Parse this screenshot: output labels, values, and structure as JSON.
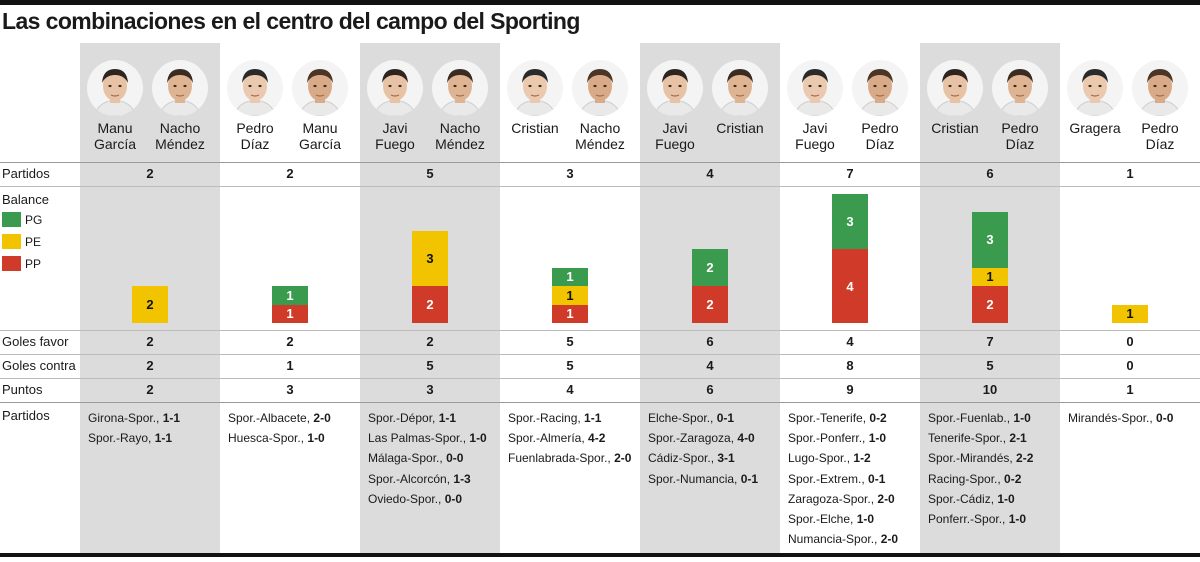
{
  "title": "Las combinaciones en el centro del campo del Sporting",
  "row_labels": {
    "partidos": "Partidos",
    "balance": "Balance",
    "goles_favor": "Goles favor",
    "goles_contra": "Goles contra",
    "puntos": "Puntos",
    "partidos_list": "Partidos"
  },
  "legend": [
    {
      "key": "pg",
      "label": "PG",
      "color": "#3a9a4e"
    },
    {
      "key": "pe",
      "label": "PE",
      "color": "#f2c400"
    },
    {
      "key": "pp",
      "label": "PP",
      "color": "#cf3b28"
    }
  ],
  "chart_data": {
    "type": "bar",
    "stacked": true,
    "categories": [
      "Manu García / Nacho Méndez",
      "Pedro Díaz / Manu García",
      "Javi Fuego / Nacho Méndez",
      "Cristian / Nacho Méndez",
      "Javi Fuego / Cristian",
      "Javi Fuego / Pedro Díaz",
      "Cristian / Pedro Díaz",
      "Gragera / Pedro Díaz"
    ],
    "series": [
      {
        "name": "PG",
        "values": [
          0,
          1,
          0,
          1,
          2,
          3,
          3,
          0
        ],
        "color": "#3a9a4e"
      },
      {
        "name": "PE",
        "values": [
          2,
          0,
          3,
          1,
          0,
          0,
          1,
          1
        ],
        "color": "#f2c400"
      },
      {
        "name": "PP",
        "values": [
          0,
          1,
          2,
          1,
          2,
          4,
          2,
          0
        ],
        "color": "#cf3b28"
      }
    ]
  },
  "columns": [
    {
      "players": [
        {
          "name": "Manu\nGarcía"
        },
        {
          "name": "Nacho\nMéndez"
        }
      ],
      "partidos": "2",
      "goles_favor": "2",
      "goles_contra": "2",
      "puntos": "2",
      "matches": [
        {
          "teams": "Girona-Spor.,",
          "score": "1-1"
        },
        {
          "teams": "Spor.-Rayo,",
          "score": "1-1"
        }
      ]
    },
    {
      "players": [
        {
          "name": "Pedro\nDíaz"
        },
        {
          "name": "Manu\nGarcía"
        }
      ],
      "partidos": "2",
      "goles_favor": "2",
      "goles_contra": "1",
      "puntos": "3",
      "matches": [
        {
          "teams": "Spor.-Albacete,",
          "score": "2-0"
        },
        {
          "teams": "Huesca-Spor.,",
          "score": "1-0"
        }
      ]
    },
    {
      "players": [
        {
          "name": "Javi\nFuego"
        },
        {
          "name": "Nacho\nMéndez"
        }
      ],
      "partidos": "5",
      "goles_favor": "2",
      "goles_contra": "5",
      "puntos": "3",
      "matches": [
        {
          "teams": "Spor.-Dépor,",
          "score": "1-1"
        },
        {
          "teams": "Las Palmas-Spor.,",
          "score": "1-0"
        },
        {
          "teams": "Málaga-Spor.,",
          "score": "0-0"
        },
        {
          "teams": "Spor.-Alcorcón,",
          "score": "1-3"
        },
        {
          "teams": "Oviedo-Spor.,",
          "score": "0-0"
        }
      ]
    },
    {
      "players": [
        {
          "name": "Cristian"
        },
        {
          "name": "Nacho\nMéndez"
        }
      ],
      "partidos": "3",
      "goles_favor": "5",
      "goles_contra": "5",
      "puntos": "4",
      "matches": [
        {
          "teams": "Spor.-Racing,",
          "score": "1-1"
        },
        {
          "teams": "Spor.-Almería,",
          "score": "4-2"
        },
        {
          "teams": "Fuenlabrada-Spor.,",
          "score": "2-0"
        }
      ]
    },
    {
      "players": [
        {
          "name": "Javi\nFuego"
        },
        {
          "name": "Cristian"
        }
      ],
      "partidos": "4",
      "goles_favor": "6",
      "goles_contra": "4",
      "puntos": "6",
      "matches": [
        {
          "teams": "Elche-Spor.,",
          "score": "0-1"
        },
        {
          "teams": "Spor.-Zaragoza,",
          "score": "4-0"
        },
        {
          "teams": "Cádiz-Spor.,",
          "score": "3-1"
        },
        {
          "teams": "Spor.-Numancia,",
          "score": "0-1"
        }
      ]
    },
    {
      "players": [
        {
          "name": "Javi\nFuego"
        },
        {
          "name": "Pedro\nDíaz"
        }
      ],
      "partidos": "7",
      "goles_favor": "4",
      "goles_contra": "8",
      "puntos": "9",
      "matches": [
        {
          "teams": "Spor.-Tenerife,",
          "score": "0-2"
        },
        {
          "teams": "Spor.-Ponferr.,",
          "score": "1-0"
        },
        {
          "teams": "Lugo-Spor.,",
          "score": "1-2"
        },
        {
          "teams": "Spor.-Extrem.,",
          "score": "0-1"
        },
        {
          "teams": "Zaragoza-Spor.,",
          "score": "2-0"
        },
        {
          "teams": "Spor.-Elche,",
          "score": "1-0"
        },
        {
          "teams": "Numancia-Spor.,",
          "score": "2-0"
        }
      ]
    },
    {
      "players": [
        {
          "name": "Cristian"
        },
        {
          "name": "Pedro\nDíaz"
        }
      ],
      "partidos": "6",
      "goles_favor": "7",
      "goles_contra": "5",
      "puntos": "10",
      "matches": [
        {
          "teams": "Spor.-Fuenlab.,",
          "score": "1-0"
        },
        {
          "teams": "Tenerife-Spor.,",
          "score": "2-1"
        },
        {
          "teams": "Spor.-Mirandés,",
          "score": "2-2"
        },
        {
          "teams": "Racing-Spor.,",
          "score": "0-2"
        },
        {
          "teams": "Spor.-Cádiz,",
          "score": "1-0"
        },
        {
          "teams": "Ponferr.-Spor.,",
          "score": "1-0"
        }
      ]
    },
    {
      "players": [
        {
          "name": "Gragera"
        },
        {
          "name": "Pedro\nDíaz"
        }
      ],
      "partidos": "1",
      "goles_favor": "0",
      "goles_contra": "0",
      "puntos": "1",
      "matches": [
        {
          "teams": "Mirandés-Spor.,",
          "score": "0-0"
        }
      ]
    }
  ]
}
